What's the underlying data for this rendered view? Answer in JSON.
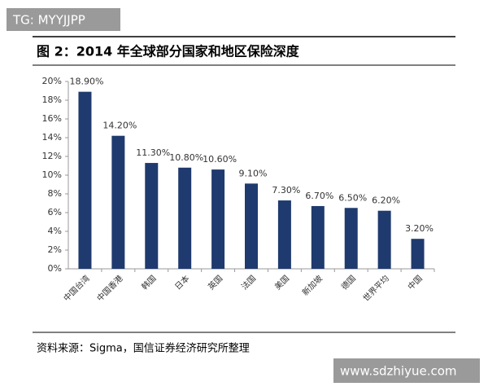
{
  "watermark_top": "TG: MYYJJPP",
  "watermark_bottom": "www.sdzhiyue.com",
  "chart_data": {
    "type": "bar",
    "title": "图 2：2014 年全球部分国家和地区保险深度",
    "source": "资料来源：Sigma，国信证券经济研究所整理",
    "categories": [
      "中国台湾",
      "中国香港",
      "韩国",
      "日本",
      "英国",
      "法国",
      "美国",
      "新加坡",
      "德国",
      "世界平均",
      "中国"
    ],
    "values": [
      18.9,
      14.2,
      11.3,
      10.8,
      10.6,
      9.1,
      7.3,
      6.7,
      6.5,
      6.2,
      3.2
    ],
    "value_labels": [
      "18.90%",
      "14.20%",
      "11.30%",
      "10.80%",
      "10.60%",
      "9.10%",
      "7.30%",
      "6.70%",
      "6.50%",
      "6.20%",
      "3.20%"
    ],
    "color": "#1f3a6e",
    "ylim": [
      0,
      20
    ],
    "yticks": [
      {
        "value": 0,
        "label": "0%"
      },
      {
        "value": 2,
        "label": "2%"
      },
      {
        "value": 4,
        "label": "4%"
      },
      {
        "value": 6,
        "label": "6%"
      },
      {
        "value": 8,
        "label": "8%"
      },
      {
        "value": 10,
        "label": "10%"
      },
      {
        "value": 12,
        "label": "12%"
      },
      {
        "value": 14,
        "label": "14%"
      },
      {
        "value": 16,
        "label": "16%"
      },
      {
        "value": 18,
        "label": "18%"
      },
      {
        "value": 20,
        "label": "20%"
      }
    ],
    "grid": false
  }
}
